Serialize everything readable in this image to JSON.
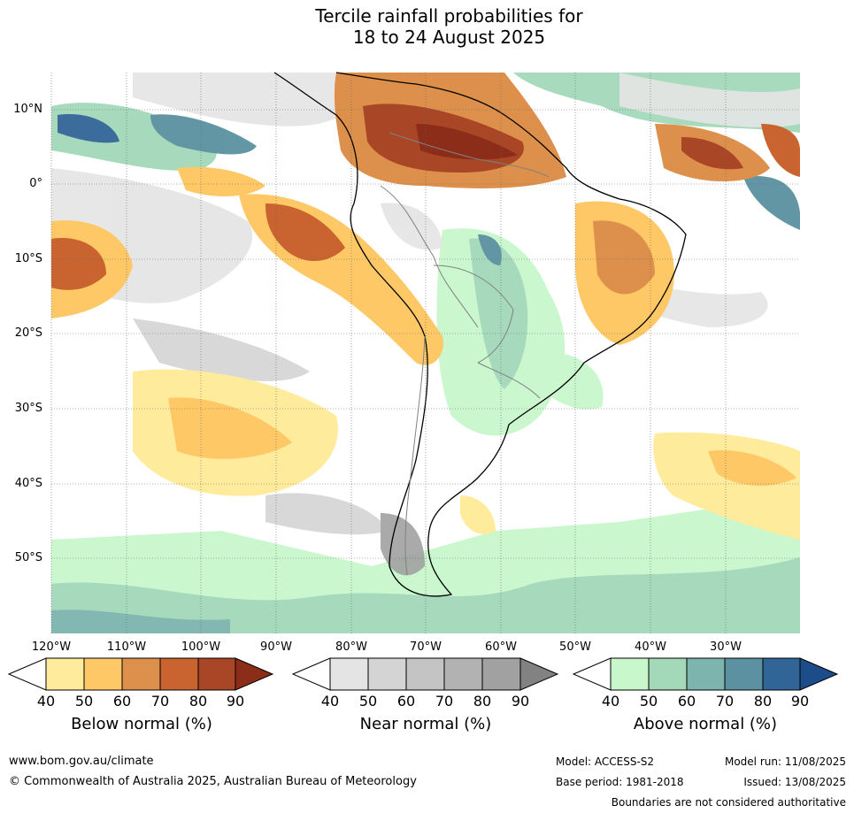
{
  "title": {
    "line1": "Tercile rainfall probabilities for",
    "line2": "18 to 24 August 2025"
  },
  "map": {
    "lat_labels": [
      "10°N",
      "0°",
      "10°S",
      "20°S",
      "30°S",
      "40°S",
      "50°S"
    ],
    "lon_labels": [
      "120°W",
      "110°W",
      "100°W",
      "90°W",
      "80°W",
      "70°W",
      "60°W",
      "50°W",
      "40°W",
      "30°W"
    ]
  },
  "colorbars": [
    {
      "label": "Below normal (%)",
      "ticks": [
        "40",
        "50",
        "60",
        "70",
        "80",
        "90"
      ],
      "colors": [
        "#ffeb9c",
        "#fdc865",
        "#dd904b",
        "#c9632f",
        "#a94626",
        "#8c2d1a"
      ]
    },
    {
      "label": "Near normal (%)",
      "ticks": [
        "40",
        "50",
        "60",
        "70",
        "80",
        "90"
      ],
      "colors": [
        "#e4e4e4",
        "#d4d4d4",
        "#c4c4c4",
        "#b2b2b2",
        "#a1a1a1",
        "#828282"
      ]
    },
    {
      "label": "Above normal (%)",
      "ticks": [
        "40",
        "50",
        "60",
        "70",
        "80",
        "90"
      ],
      "colors": [
        "#c8f7cc",
        "#a3d9b9",
        "#7db4ae",
        "#5b91a1",
        "#326597",
        "#1d4d88"
      ]
    }
  ],
  "footer": {
    "website": "www.bom.gov.au/climate",
    "copyright": "© Commonwealth of Australia 2025, Australian Bureau of Meteorology",
    "model": "Model: ACCESS-S2",
    "base_period": "Base period: 1981-2018",
    "model_run": "Model run: 11/08/2025",
    "issued": "Issued: 13/08/2025",
    "disclaimer": "Boundaries are not considered authoritative"
  }
}
